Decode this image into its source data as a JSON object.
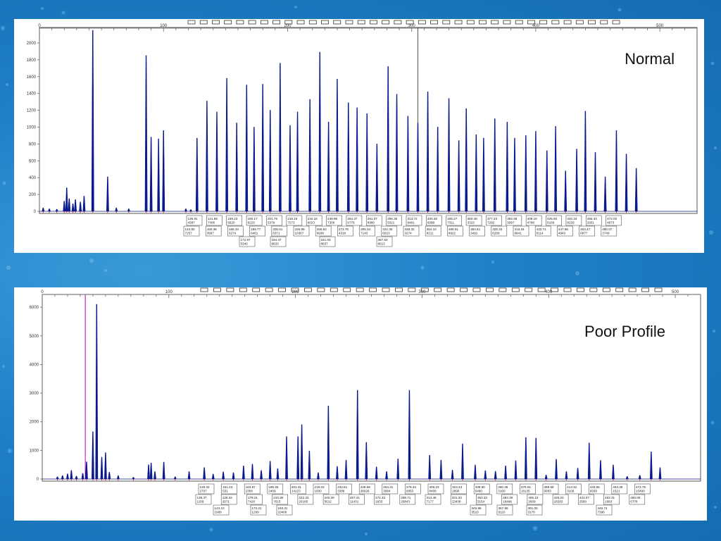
{
  "chart_data": [
    {
      "type": "line",
      "panel_label": "Normal",
      "x_ticks": [
        0,
        100,
        200,
        300,
        400,
        500
      ],
      "xlim": [
        0,
        530
      ],
      "y_ticks": [
        0,
        200,
        400,
        600,
        800,
        1000,
        1200,
        1400,
        1600,
        1800,
        2000
      ],
      "ylim": [
        0,
        2100
      ],
      "series_color": "#0a1a8c",
      "cursor_x": 305,
      "marker_count": 36,
      "peaks": [
        {
          "x": 3,
          "y": 40
        },
        {
          "x": 8,
          "y": 30
        },
        {
          "x": 14,
          "y": 25
        },
        {
          "x": 20,
          "y": 120
        },
        {
          "x": 22,
          "y": 280
        },
        {
          "x": 24,
          "y": 150
        },
        {
          "x": 27,
          "y": 90
        },
        {
          "x": 29,
          "y": 140
        },
        {
          "x": 33,
          "y": 110
        },
        {
          "x": 36,
          "y": 180
        },
        {
          "x": 43,
          "y": 2150
        },
        {
          "x": 55,
          "y": 410
        },
        {
          "x": 62,
          "y": 40
        },
        {
          "x": 72,
          "y": 30
        },
        {
          "x": 86,
          "y": 1850
        },
        {
          "x": 90,
          "y": 880
        },
        {
          "x": 96,
          "y": 860
        },
        {
          "x": 100,
          "y": 960
        },
        {
          "x": 118,
          "y": 30
        },
        {
          "x": 122,
          "y": 20
        },
        {
          "x": 127,
          "y": 870
        },
        {
          "x": 135,
          "y": 1310
        },
        {
          "x": 143,
          "y": 1180
        },
        {
          "x": 151,
          "y": 1580
        },
        {
          "x": 159,
          "y": 1050
        },
        {
          "x": 167,
          "y": 1500
        },
        {
          "x": 173,
          "y": 1000
        },
        {
          "x": 180,
          "y": 1510
        },
        {
          "x": 186,
          "y": 1200
        },
        {
          "x": 194,
          "y": 1760
        },
        {
          "x": 202,
          "y": 1020
        },
        {
          "x": 208,
          "y": 1180
        },
        {
          "x": 218,
          "y": 1330
        },
        {
          "x": 226,
          "y": 1890
        },
        {
          "x": 233,
          "y": 1060
        },
        {
          "x": 240,
          "y": 1570
        },
        {
          "x": 249,
          "y": 1290
        },
        {
          "x": 256,
          "y": 1230
        },
        {
          "x": 264,
          "y": 1160
        },
        {
          "x": 272,
          "y": 800
        },
        {
          "x": 281,
          "y": 1720
        },
        {
          "x": 288,
          "y": 1390
        },
        {
          "x": 297,
          "y": 1130
        },
        {
          "x": 305,
          "y": 1050
        },
        {
          "x": 313,
          "y": 1420
        },
        {
          "x": 321,
          "y": 1000
        },
        {
          "x": 330,
          "y": 1340
        },
        {
          "x": 338,
          "y": 840
        },
        {
          "x": 344,
          "y": 1220
        },
        {
          "x": 352,
          "y": 910
        },
        {
          "x": 358,
          "y": 870
        },
        {
          "x": 367,
          "y": 1100
        },
        {
          "x": 377,
          "y": 1060
        },
        {
          "x": 383,
          "y": 870
        },
        {
          "x": 392,
          "y": 900
        },
        {
          "x": 400,
          "y": 950
        },
        {
          "x": 409,
          "y": 720
        },
        {
          "x": 416,
          "y": 1010
        },
        {
          "x": 424,
          "y": 480
        },
        {
          "x": 433,
          "y": 740
        },
        {
          "x": 440,
          "y": 1190
        },
        {
          "x": 448,
          "y": 700
        },
        {
          "x": 456,
          "y": 410
        },
        {
          "x": 465,
          "y": 960
        },
        {
          "x": 473,
          "y": 680
        },
        {
          "x": 481,
          "y": 510
        }
      ],
      "labels_row1": [
        [
          "136.91",
          "4387"
        ],
        [
          "141.86",
          "7406"
        ],
        [
          "159.23",
          "5620"
        ],
        [
          "180.17",
          "6223"
        ],
        [
          "201.76",
          "5379"
        ],
        [
          "218.16",
          "7273"
        ],
        [
          "234.16",
          "6023"
        ],
        [
          "249.98",
          "7306"
        ],
        [
          "264.37",
          "6776"
        ],
        [
          "281.07",
          "8960"
        ],
        [
          "296.35",
          "6321"
        ],
        [
          "313.72",
          "9481"
        ],
        [
          "330.48",
          "8388"
        ],
        [
          "345.27",
          "7311"
        ],
        [
          "360.48",
          "3323"
        ],
        [
          "377.33",
          "7282"
        ],
        [
          "392.58",
          "5997"
        ],
        [
          "409.19",
          "4798"
        ],
        [
          "425.93",
          "5166"
        ],
        [
          "440.34",
          "8226"
        ],
        [
          "456.34",
          "2931"
        ],
        [
          "472.00",
          "4873"
        ]
      ],
      "labels_row2": [
        [
          "134.50",
          "7257"
        ],
        [
          "150.38",
          "3587"
        ],
        [
          "166.34",
          "3274"
        ],
        [
          "186.77",
          "6461"
        ],
        [
          "205.61",
          "6371"
        ],
        [
          "226.89",
          "10367"
        ],
        [
          "256.63",
          "6938"
        ],
        [
          "273.76",
          "4318"
        ],
        [
          "305.34",
          "7143"
        ],
        [
          "322.30",
          "6023"
        ],
        [
          "338.32",
          "3274"
        ],
        [
          "354.10",
          "8211"
        ],
        [
          "369.91",
          "8922"
        ],
        [
          "384.61",
          "3491"
        ],
        [
          "400.33",
          "6258"
        ],
        [
          "416.34",
          "8941"
        ],
        [
          "432.74",
          "5114"
        ],
        [
          "447.86",
          "4943"
        ],
        [
          "463.47",
          "6877"
        ],
        [
          "480.07",
          "3749"
        ]
      ],
      "labels_row3": [
        [
          "172.97",
          "5340"
        ],
        [
          "194.37",
          "9633"
        ],
        [
          "241.03",
          "8637"
        ],
        [
          "287.63",
          "8013"
        ]
      ]
    },
    {
      "type": "line",
      "panel_label": "Poor Profile",
      "x_ticks": [
        0,
        100,
        200,
        300,
        400,
        500
      ],
      "xlim": [
        0,
        520
      ],
      "y_ticks": [
        0,
        1000,
        2000,
        3000,
        4000,
        5000,
        6000
      ],
      "ylim": [
        0,
        6200
      ],
      "series_color": "#0a1a8c",
      "cursor_x": 34,
      "cursor_color": "#b000b0",
      "marker_count": 36,
      "peaks": [
        {
          "x": 12,
          "y": 80
        },
        {
          "x": 16,
          "y": 120
        },
        {
          "x": 20,
          "y": 180
        },
        {
          "x": 23,
          "y": 300
        },
        {
          "x": 27,
          "y": 100
        },
        {
          "x": 32,
          "y": 200
        },
        {
          "x": 35,
          "y": 600
        },
        {
          "x": 40,
          "y": 1650
        },
        {
          "x": 43,
          "y": 6100
        },
        {
          "x": 47,
          "y": 760
        },
        {
          "x": 50,
          "y": 920
        },
        {
          "x": 53,
          "y": 240
        },
        {
          "x": 60,
          "y": 120
        },
        {
          "x": 72,
          "y": 60
        },
        {
          "x": 84,
          "y": 500
        },
        {
          "x": 86,
          "y": 560
        },
        {
          "x": 89,
          "y": 260
        },
        {
          "x": 96,
          "y": 590
        },
        {
          "x": 105,
          "y": 80
        },
        {
          "x": 116,
          "y": 260
        },
        {
          "x": 128,
          "y": 400
        },
        {
          "x": 135,
          "y": 170
        },
        {
          "x": 143,
          "y": 250
        },
        {
          "x": 151,
          "y": 220
        },
        {
          "x": 159,
          "y": 460
        },
        {
          "x": 166,
          "y": 520
        },
        {
          "x": 173,
          "y": 300
        },
        {
          "x": 180,
          "y": 620
        },
        {
          "x": 186,
          "y": 360
        },
        {
          "x": 193,
          "y": 1480
        },
        {
          "x": 202,
          "y": 1480
        },
        {
          "x": 205,
          "y": 1900
        },
        {
          "x": 211,
          "y": 980
        },
        {
          "x": 218,
          "y": 220
        },
        {
          "x": 226,
          "y": 2550
        },
        {
          "x": 233,
          "y": 440
        },
        {
          "x": 240,
          "y": 660
        },
        {
          "x": 249,
          "y": 3100
        },
        {
          "x": 256,
          "y": 1280
        },
        {
          "x": 264,
          "y": 420
        },
        {
          "x": 272,
          "y": 260
        },
        {
          "x": 281,
          "y": 700
        },
        {
          "x": 290,
          "y": 3100
        },
        {
          "x": 306,
          "y": 830
        },
        {
          "x": 315,
          "y": 660
        },
        {
          "x": 324,
          "y": 310
        },
        {
          "x": 332,
          "y": 1230
        },
        {
          "x": 342,
          "y": 490
        },
        {
          "x": 350,
          "y": 290
        },
        {
          "x": 358,
          "y": 270
        },
        {
          "x": 366,
          "y": 460
        },
        {
          "x": 374,
          "y": 640
        },
        {
          "x": 382,
          "y": 1450
        },
        {
          "x": 390,
          "y": 1430
        },
        {
          "x": 398,
          "y": 140
        },
        {
          "x": 406,
          "y": 690
        },
        {
          "x": 414,
          "y": 260
        },
        {
          "x": 423,
          "y": 380
        },
        {
          "x": 432,
          "y": 1260
        },
        {
          "x": 441,
          "y": 650
        },
        {
          "x": 451,
          "y": 490
        },
        {
          "x": 462,
          "y": 90
        },
        {
          "x": 472,
          "y": 130
        },
        {
          "x": 481,
          "y": 950
        },
        {
          "x": 488,
          "y": 400
        }
      ],
      "labels_row1": [
        [
          "129.32",
          "2707"
        ],
        [
          "151.23",
          "531"
        ],
        [
          "163.87",
          "2308"
        ],
        [
          "188.25",
          "2409"
        ],
        [
          "201.31",
          "14123"
        ],
        [
          "218.03",
          "1600"
        ],
        [
          "232.81",
          "3388"
        ],
        [
          "248.69",
          "26026"
        ],
        [
          "264.31",
          "3994"
        ],
        [
          "279.34",
          "6853"
        ],
        [
          "306.23",
          "8408"
        ],
        [
          "324.43",
          "2890"
        ],
        [
          "339.60",
          "5490"
        ],
        [
          "360.36",
          "3160"
        ],
        [
          "376.91",
          "18135"
        ],
        [
          "399.68",
          "9093"
        ],
        [
          "413.42",
          "3109"
        ],
        [
          "433.65",
          "9339"
        ],
        [
          "453.39",
          "1521"
        ],
        [
          "473.79",
          "15490"
        ]
      ],
      "labels_row2": [
        [
          "136.37",
          "1169"
        ],
        [
          "139.34",
          "2671"
        ],
        [
          "179.21",
          "7420"
        ],
        [
          "210.36",
          "7615"
        ],
        [
          "222.33",
          "20166"
        ],
        [
          "240.39",
          "5612"
        ],
        [
          "257.41",
          "11431"
        ],
        [
          "272.43",
          "1833"
        ],
        [
          "289.71",
          "29843"
        ],
        [
          "313.48",
          "7177"
        ],
        [
          "331.33",
          "13438"
        ],
        [
          "353.33",
          "5154"
        ],
        [
          "384.39",
          "18496"
        ],
        [
          "406.10",
          "2809"
        ],
        [
          "425.04",
          "18283"
        ],
        [
          "441.07",
          "2560"
        ],
        [
          "463.31",
          "1663"
        ],
        [
          "480.00",
          "6778"
        ]
      ],
      "labels_row3": [
        [
          "143.10",
          "1968"
        ],
        [
          "172.21",
          "1269"
        ],
        [
          "193.31",
          "10406"
        ],
        [
          "345.96",
          "3510"
        ],
        [
          "367.86",
          "9110"
        ],
        [
          "391.00",
          "3170"
        ],
        [
          "446.74",
          "7396"
        ]
      ]
    }
  ]
}
